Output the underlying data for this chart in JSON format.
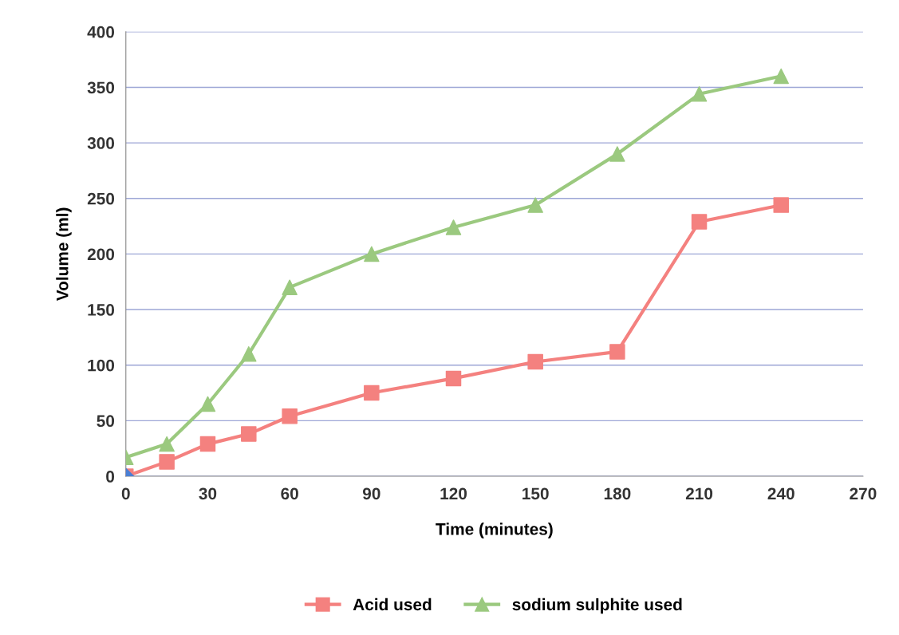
{
  "chart_data": {
    "type": "line",
    "xlabel": "Time (minutes)",
    "ylabel": "Volume (ml)",
    "xlim": [
      0,
      270
    ],
    "xticks": [
      0,
      30,
      60,
      90,
      120,
      150,
      180,
      210,
      240,
      270
    ],
    "ylim": [
      0,
      400
    ],
    "yticks": [
      0,
      50,
      100,
      150,
      200,
      250,
      300,
      350,
      400
    ],
    "grid": "y",
    "legend": "bottom",
    "series": [
      {
        "name": "Acid used",
        "color": "#f4817f",
        "marker": "square",
        "x": [
          0,
          15,
          30,
          45,
          60,
          90,
          120,
          150,
          180,
          210,
          240
        ],
        "values": [
          0,
          13,
          29,
          38,
          54,
          75,
          88,
          103,
          112,
          229,
          244
        ]
      },
      {
        "name": "sodium sulphite used",
        "color": "#9bc97f",
        "marker": "triangle",
        "x": [
          0,
          15,
          30,
          45,
          60,
          90,
          120,
          150,
          180,
          210,
          240
        ],
        "values": [
          17,
          29,
          65,
          110,
          170,
          200,
          224,
          244,
          290,
          344,
          360
        ]
      },
      {
        "type": "scatter",
        "color": "#4a7fd4",
        "marker": "diamond",
        "x": [
          0
        ],
        "values": [
          0
        ]
      }
    ]
  }
}
